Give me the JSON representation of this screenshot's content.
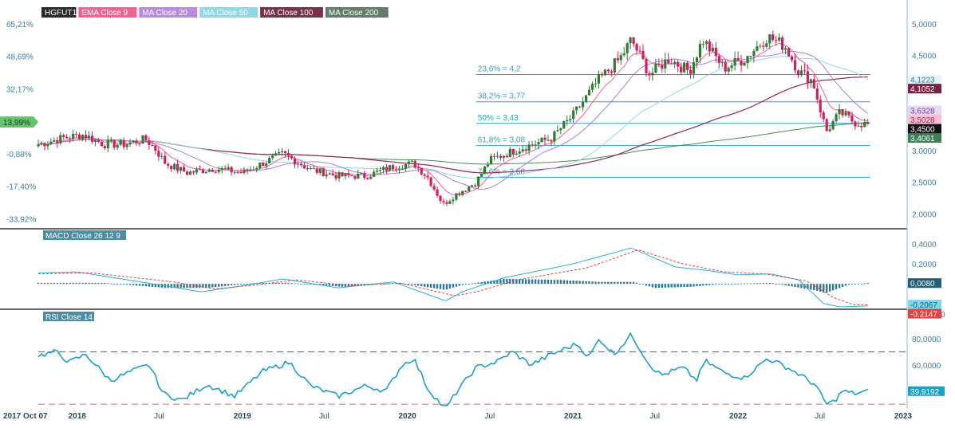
{
  "colors": {
    "price_up": "#2e7d32",
    "price_down": "#d81b60",
    "ema9": "#f06292",
    "ma20": "#ab7fd9",
    "ma50": "#8fd8ea",
    "ma100": "#8a2a50",
    "ma200": "#4a8a55",
    "fib": "#2f9fc0",
    "macd_line": "#28b3d1",
    "signal_line": "#e04545",
    "histogram": "#2b7a9a",
    "rsi": "#1aa0cc",
    "rsi_upper": "#1f6a80",
    "rsi_lower": "#e56a6a",
    "axis_text": "#3a7fa0",
    "separator": "#333333"
  },
  "legend": [
    {
      "label": "HGFUT1",
      "bg": "#2b2b2b"
    },
    {
      "label": "EMA Close 9",
      "bg": "#f06292"
    },
    {
      "label": "MA Close 20",
      "bg": "#b98be0"
    },
    {
      "label": "MA Close 50",
      "bg": "#8fd8ea"
    },
    {
      "label": "MA Close 100",
      "bg": "#7a2f4c"
    },
    {
      "label": "MA Close 200",
      "bg": "#5e7d6a"
    }
  ],
  "x_labels": [
    "2017 Oct 07",
    "2018",
    "Jul",
    "2019",
    "Jul",
    "2020",
    "Jul",
    "2021",
    "Jul",
    "2022",
    "Jul",
    "2023"
  ],
  "chart_data": [
    {
      "type": "candlestick",
      "title": "HGFUT1",
      "x_start": "2017 Oct 07",
      "interval": "weekly",
      "ylim": [
        1.83,
        5.2
      ],
      "y_ticks": [
        "5,0000",
        "4,5000",
        "4,0000",
        "3,5000",
        "3,0000",
        "2,5000",
        "2,0000"
      ],
      "left_pct_ticks": [
        "65,21%",
        "48,69%",
        "32,17%",
        "13,99%",
        "-0,88%",
        "-17,40%",
        "-33,92%"
      ],
      "close_keypoints": [
        [
          "2017-10-07",
          3.1
        ],
        [
          "2017-12-01",
          3.2
        ],
        [
          "2018-01-15",
          3.25
        ],
        [
          "2018-03-01",
          3.1
        ],
        [
          "2018-04-15",
          3.1
        ],
        [
          "2018-06-01",
          3.18
        ],
        [
          "2018-06-20",
          3.05
        ],
        [
          "2018-07-15",
          2.8
        ],
        [
          "2018-09-01",
          2.65
        ],
        [
          "2018-11-01",
          2.72
        ],
        [
          "2019-01-01",
          2.65
        ],
        [
          "2019-04-01",
          2.95
        ],
        [
          "2019-06-01",
          2.7
        ],
        [
          "2019-08-01",
          2.6
        ],
        [
          "2019-10-01",
          2.6
        ],
        [
          "2019-12-01",
          2.75
        ],
        [
          "2020-01-15",
          2.8
        ],
        [
          "2020-02-15",
          2.58
        ],
        [
          "2020-03-20",
          2.15
        ],
        [
          "2020-04-15",
          2.3
        ],
        [
          "2020-06-01",
          2.5
        ],
        [
          "2020-07-01",
          2.85
        ],
        [
          "2020-09-01",
          3.02
        ],
        [
          "2020-11-15",
          3.2
        ],
        [
          "2021-01-01",
          3.55
        ],
        [
          "2021-02-25",
          4.1
        ],
        [
          "2021-04-15",
          4.45
        ],
        [
          "2021-05-10",
          4.75
        ],
        [
          "2021-06-20",
          4.2
        ],
        [
          "2021-08-01",
          4.45
        ],
        [
          "2021-09-15",
          4.25
        ],
        [
          "2021-10-15",
          4.75
        ],
        [
          "2021-12-01",
          4.3
        ],
        [
          "2022-01-15",
          4.45
        ],
        [
          "2022-03-07",
          4.8
        ],
        [
          "2022-04-15",
          4.65
        ],
        [
          "2022-05-15",
          4.25
        ],
        [
          "2022-06-15",
          4.1
        ],
        [
          "2022-06-30",
          3.7
        ],
        [
          "2022-07-15",
          3.3
        ],
        [
          "2022-08-15",
          3.6
        ],
        [
          "2022-09-15",
          3.45
        ],
        [
          "2022-10-20",
          3.4
        ]
      ],
      "price_tags": [
        {
          "value": 4.1223,
          "label": "4,1223",
          "bg": "#e6f6fa",
          "fg": "#2a7a99"
        },
        {
          "value": 4.1052,
          "label": "4,1052",
          "bg": "#7b1f45",
          "fg": "#ffffff"
        },
        {
          "value": 3.6328,
          "label": "3,6328",
          "bg": "#e8d8f4",
          "fg": "#6a3f98"
        },
        {
          "value": 3.5028,
          "label": "3,5028",
          "bg": "#f6c1d6",
          "fg": "#a8265c"
        },
        {
          "value": 3.45,
          "label": "3,4500",
          "bg": "#111111",
          "fg": "#ffffff"
        },
        {
          "value": 3.4061,
          "label": "3,4061",
          "bg": "#3f7d55",
          "fg": "#ffffff"
        }
      ],
      "left_tag": {
        "label": "13,99%",
        "bg": "#63c46c"
      },
      "fibonacci": {
        "start": "2020-06-01",
        "end": "2022-10-20",
        "levels": [
          {
            "label": "23,6% = 4,2",
            "value": 4.2
          },
          {
            "label": "38,2% = 3,77",
            "value": 3.77
          },
          {
            "label": "50% = 3,43",
            "value": 3.43
          },
          {
            "label": "61,8% = 3,08",
            "value": 3.08
          },
          {
            "label": "78,6% = 2,58",
            "value": 2.58
          }
        ]
      }
    },
    {
      "type": "line",
      "title": "MACD Close 26 12 9",
      "ylim": [
        -0.23,
        0.48
      ],
      "y_ticks": [
        "0,4000",
        "0,2000"
      ],
      "series": [
        {
          "name": "MACD",
          "keypoints": [
            [
              "2017-10-07",
              0.11
            ],
            [
              "2018-01-01",
              0.12
            ],
            [
              "2018-07-15",
              -0.02
            ],
            [
              "2018-10-01",
              -0.08
            ],
            [
              "2019-01-01",
              -0.02
            ],
            [
              "2019-04-01",
              0.05
            ],
            [
              "2019-08-01",
              -0.04
            ],
            [
              "2019-12-01",
              0.02
            ],
            [
              "2020-03-25",
              -0.17
            ],
            [
              "2020-05-01",
              -0.08
            ],
            [
              "2020-08-01",
              0.06
            ],
            [
              "2021-01-01",
              0.2
            ],
            [
              "2021-05-10",
              0.36
            ],
            [
              "2021-08-15",
              0.17
            ],
            [
              "2021-11-01",
              0.13
            ],
            [
              "2022-01-01",
              0.09
            ],
            [
              "2022-03-15",
              0.1
            ],
            [
              "2022-05-15",
              0.04
            ],
            [
              "2022-07-10",
              -0.2
            ],
            [
              "2022-08-15",
              -0.23
            ],
            [
              "2022-10-20",
              -0.22
            ]
          ]
        },
        {
          "name": "Signal",
          "keypoints": [
            [
              "2017-10-07",
              0.1
            ],
            [
              "2018-02-01",
              0.11
            ],
            [
              "2018-08-01",
              0.02
            ],
            [
              "2018-11-01",
              -0.05
            ],
            [
              "2019-02-01",
              -0.01
            ],
            [
              "2019-05-01",
              0.04
            ],
            [
              "2019-09-01",
              -0.02
            ],
            [
              "2019-12-15",
              0.01
            ],
            [
              "2020-04-15",
              -0.12
            ],
            [
              "2020-06-01",
              -0.08
            ],
            [
              "2020-09-01",
              0.04
            ],
            [
              "2021-02-01",
              0.16
            ],
            [
              "2021-05-25",
              0.34
            ],
            [
              "2021-09-01",
              0.2
            ],
            [
              "2021-12-01",
              0.12
            ],
            [
              "2022-03-01",
              0.1
            ],
            [
              "2022-06-01",
              0.03
            ],
            [
              "2022-08-01",
              -0.14
            ],
            [
              "2022-09-15",
              -0.21
            ],
            [
              "2022-10-20",
              -0.21
            ]
          ]
        }
      ],
      "histogram_keypoints": [
        [
          "2017-10-07",
          0.01
        ],
        [
          "2018-03-01",
          0.01
        ],
        [
          "2018-07-15",
          -0.04
        ],
        [
          "2018-10-15",
          -0.04
        ],
        [
          "2019-02-01",
          0.01
        ],
        [
          "2019-04-15",
          0.01
        ],
        [
          "2019-08-15",
          -0.03
        ],
        [
          "2019-12-15",
          0.01
        ],
        [
          "2020-03-25",
          -0.06
        ],
        [
          "2020-05-01",
          -0.01
        ],
        [
          "2020-08-01",
          0.05
        ],
        [
          "2020-12-01",
          0.04
        ],
        [
          "2021-03-01",
          0.02
        ],
        [
          "2021-05-15",
          0.02
        ],
        [
          "2021-07-01",
          -0.04
        ],
        [
          "2021-09-15",
          -0.03
        ],
        [
          "2021-12-01",
          0.0
        ],
        [
          "2022-03-15",
          0.01
        ],
        [
          "2022-06-15",
          -0.06
        ],
        [
          "2022-07-15",
          -0.09
        ],
        [
          "2022-09-01",
          -0.01
        ],
        [
          "2022-10-20",
          0.01
        ]
      ],
      "value_tags": [
        {
          "value": 0.008,
          "label": "0,0080",
          "bg": "#1f5f78",
          "fg": "#ffffff"
        },
        {
          "value": -0.2067,
          "label": "-0,2067",
          "bg": "#7fd7ea",
          "fg": "#1d5d74"
        },
        {
          "value": -0.2147,
          "label": "-0,2147",
          "bg": "#e04545",
          "fg": "#ffffff"
        }
      ]
    },
    {
      "type": "line",
      "title": "RSI Close 14",
      "ylim": [
        27,
        100
      ],
      "y_ticks": [
        "100,0000",
        "80,0000",
        "60,0000"
      ],
      "guides": [
        70,
        30
      ],
      "series": [
        {
          "name": "RSI",
          "keypoints": [
            [
              "2017-10-07",
              67
            ],
            [
              "2017-11-15",
              70
            ],
            [
              "2017-12-15",
              62
            ],
            [
              "2018-01-20",
              68
            ],
            [
              "2018-03-15",
              48
            ],
            [
              "2018-05-01",
              55
            ],
            [
              "2018-06-10",
              60
            ],
            [
              "2018-07-10",
              38
            ],
            [
              "2018-08-20",
              33
            ],
            [
              "2018-10-15",
              45
            ],
            [
              "2018-12-15",
              36
            ],
            [
              "2019-02-15",
              55
            ],
            [
              "2019-04-15",
              62
            ],
            [
              "2019-06-01",
              44
            ],
            [
              "2019-08-01",
              36
            ],
            [
              "2019-10-01",
              44
            ],
            [
              "2019-11-15",
              40
            ],
            [
              "2019-12-20",
              60
            ],
            [
              "2020-01-15",
              65
            ],
            [
              "2020-02-15",
              42
            ],
            [
              "2020-03-25",
              26
            ],
            [
              "2020-04-20",
              40
            ],
            [
              "2020-06-01",
              58
            ],
            [
              "2020-07-15",
              62
            ],
            [
              "2020-08-20",
              70
            ],
            [
              "2020-09-30",
              60
            ],
            [
              "2020-11-15",
              68
            ],
            [
              "2021-01-10",
              76
            ],
            [
              "2021-02-05",
              66
            ],
            [
              "2021-03-01",
              80
            ],
            [
              "2021-04-01",
              68
            ],
            [
              "2021-05-10",
              83
            ],
            [
              "2021-06-20",
              60
            ],
            [
              "2021-07-15",
              52
            ],
            [
              "2021-09-01",
              58
            ],
            [
              "2021-10-01",
              48
            ],
            [
              "2021-10-20",
              63
            ],
            [
              "2021-12-01",
              54
            ],
            [
              "2022-01-15",
              50
            ],
            [
              "2022-03-07",
              65
            ],
            [
              "2022-04-20",
              58
            ],
            [
              "2022-05-15",
              53
            ],
            [
              "2022-06-20",
              45
            ],
            [
              "2022-07-15",
              30
            ],
            [
              "2022-08-01",
              32
            ],
            [
              "2022-08-20",
              40
            ],
            [
              "2022-09-15",
              38
            ],
            [
              "2022-10-20",
              39.9
            ]
          ]
        }
      ],
      "value_tags": [
        {
          "value": 39.9192,
          "label": "39,9192",
          "bg": "#1aa0cc",
          "fg": "#ffffff"
        }
      ]
    }
  ]
}
